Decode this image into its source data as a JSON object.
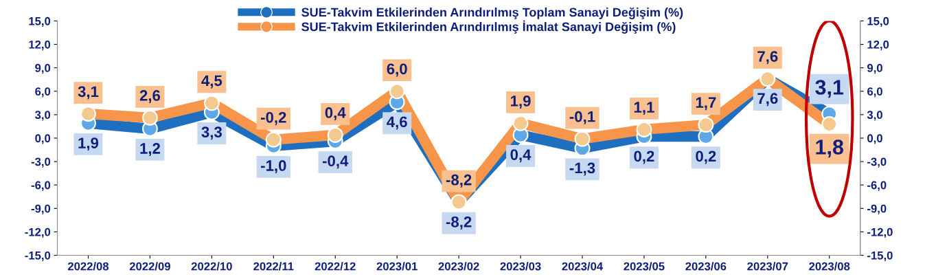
{
  "chart_data": {
    "type": "line",
    "categories": [
      "2022/08",
      "2022/09",
      "2022/10",
      "2022/11",
      "2022/12",
      "2023/01",
      "2023/02",
      "2023/03",
      "2023/04",
      "2023/05",
      "2023/06",
      "2023/07",
      "2023/08"
    ],
    "series": [
      {
        "name": "SUE-Takvim Etkilerinden Arındırılmış Toplam Sanayi Değişim (%)",
        "color": "#1f6fc0",
        "values": [
          1.9,
          1.2,
          3.3,
          -1.0,
          -0.4,
          4.6,
          -8.2,
          0.4,
          -1.3,
          0.2,
          0.2,
          7.6,
          3.1
        ],
        "value_labels": [
          "1,9",
          "1,2",
          "3,3",
          "-1,0",
          "-0,4",
          "4,6",
          "-8,2",
          "0,4",
          "-1,3",
          "0,2",
          "0,2",
          "7,6",
          "3,1"
        ]
      },
      {
        "name": "SUE-Takvim Etkilerinden Arındırılmış İmalat Sanayi Değişim (%)",
        "color": "#f7964a",
        "values": [
          3.1,
          2.6,
          4.5,
          -0.2,
          0.4,
          6.0,
          -8.2,
          1.9,
          -0.1,
          1.1,
          1.7,
          7.6,
          1.8
        ],
        "value_labels": [
          "3,1",
          "2,6",
          "4,5",
          "-0,2",
          "0,4",
          "6,0",
          "-8,2",
          "1,9",
          "-0,1",
          "1,1",
          "1,7",
          "7,6",
          "1,8"
        ]
      }
    ],
    "ylim": [
      -15,
      15
    ],
    "yticks": [
      {
        "value": -15,
        "label": "-15,0"
      },
      {
        "value": -12,
        "label": "-12,0"
      },
      {
        "value": -9,
        "label": "-9,0"
      },
      {
        "value": -6,
        "label": "-6,0"
      },
      {
        "value": -3,
        "label": "-3,0"
      },
      {
        "value": 0,
        "label": "0,0"
      },
      {
        "value": 3,
        "label": "3,0"
      },
      {
        "value": 6,
        "label": "6,0"
      },
      {
        "value": 9,
        "label": "9,0"
      },
      {
        "value": 12,
        "label": "12,0"
      },
      {
        "value": 15,
        "label": "15,0"
      }
    ],
    "y2lim": [
      -15,
      15
    ],
    "y2ticks": [
      {
        "value": -15,
        "label": "-15,0"
      },
      {
        "value": -12,
        "label": "-12,0"
      },
      {
        "value": -9,
        "label": "-9,0"
      },
      {
        "value": -6,
        "label": "-6,0"
      },
      {
        "value": -3,
        "label": "-3,0"
      },
      {
        "value": 0,
        "label": "0,0"
      },
      {
        "value": 3,
        "label": "3,0"
      },
      {
        "value": 6,
        "label": "6,0"
      },
      {
        "value": 9,
        "label": "9,0"
      },
      {
        "value": 12,
        "label": "12,0"
      },
      {
        "value": 15,
        "label": "15,0"
      }
    ],
    "grid": false,
    "legend": "top",
    "marker": "circle",
    "line_style": "solid"
  }
}
